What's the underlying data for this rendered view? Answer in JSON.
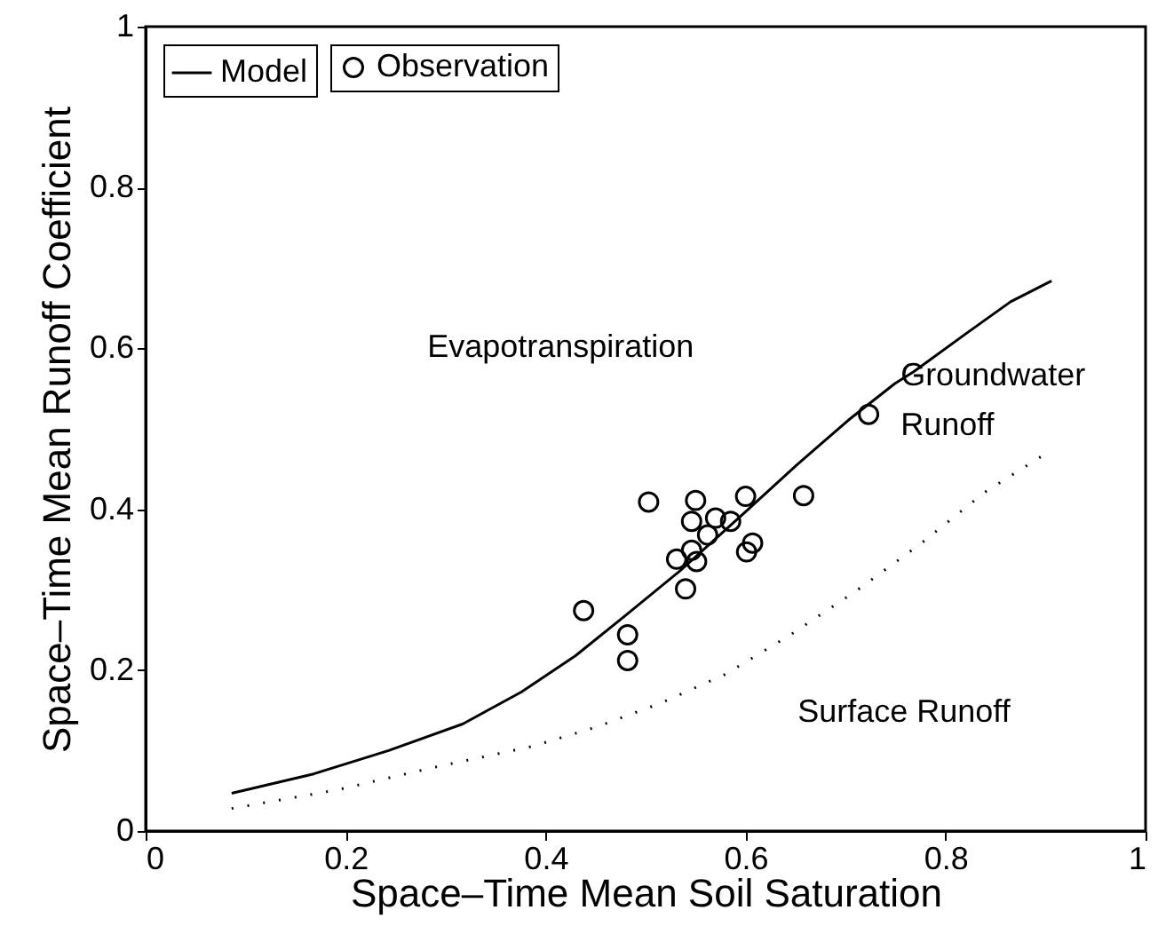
{
  "chart_data": {
    "type": "line",
    "xlabel": "Space–Time Mean Soil Saturation",
    "ylabel": "Space–Time Mean Runoff Coefficient",
    "xlim": [
      0,
      1
    ],
    "ylim": [
      0,
      1
    ],
    "xticks": [
      0,
      0.2,
      0.4,
      0.6,
      0.8,
      1
    ],
    "yticks": [
      0,
      0.2,
      0.4,
      0.6,
      0.8,
      1
    ],
    "grid": false,
    "legend": "top left",
    "annotations": [
      "Evapotranspiration",
      "Groundwater\nRunoff",
      "Surface Runoff"
    ],
    "series": [
      {
        "name": "Model",
        "type": "line",
        "color": "#000000",
        "line_style": "solid",
        "x": [
          0.086,
          0.168,
          0.243,
          0.317,
          0.376,
          0.43,
          0.48,
          0.535,
          0.6,
          0.651,
          0.703,
          0.749,
          0.768,
          0.82,
          0.865,
          0.906
        ],
        "values": [
          0.047,
          0.071,
          0.1,
          0.133,
          0.173,
          0.218,
          0.268,
          0.324,
          0.397,
          0.455,
          0.511,
          0.556,
          0.571,
          0.618,
          0.658,
          0.684
        ]
      },
      {
        "name": "Observation",
        "type": "scatter",
        "color": "#000000",
        "marker": "circle",
        "x": [
          0.503,
          0.55,
          0.6,
          0.658,
          0.723,
          0.546,
          0.57,
          0.585,
          0.562,
          0.546,
          0.531,
          0.551,
          0.601,
          0.607,
          0.54,
          0.438,
          0.482,
          0.482
        ],
        "values": [
          0.409,
          0.411,
          0.416,
          0.417,
          0.518,
          0.385,
          0.389,
          0.385,
          0.368,
          0.349,
          0.338,
          0.335,
          0.347,
          0.358,
          0.301,
          0.274,
          0.244,
          0.212
        ]
      },
      {
        "type": "line",
        "color": "#000000",
        "line_style": "dotted",
        "x": [
          0.086,
          0.191,
          0.288,
          0.386,
          0.45,
          0.515,
          0.58,
          0.645,
          0.71,
          0.775,
          0.839,
          0.9
        ],
        "values": [
          0.028,
          0.051,
          0.079,
          0.105,
          0.129,
          0.159,
          0.195,
          0.244,
          0.298,
          0.357,
          0.421,
          0.469
        ]
      }
    ]
  }
}
